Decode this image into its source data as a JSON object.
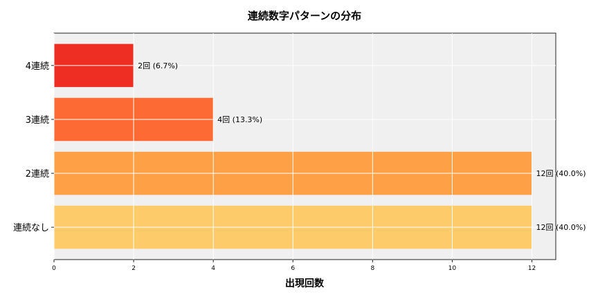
{
  "chart_data": {
    "type": "bar",
    "orientation": "horizontal",
    "title": "連続数字パターンの分布",
    "xlabel": "出現回数",
    "ylabel": "",
    "categories": [
      "4連続",
      "3連続",
      "2連続",
      "連続なし"
    ],
    "values": [
      2,
      4,
      12,
      12
    ],
    "data_labels": [
      "2回 (6.7%)",
      "4回 (13.3%)",
      "12回 (40.0%)",
      "12回 (40.0%)"
    ],
    "colors": [
      "#ee2e22",
      "#fd6a33",
      "#fda046",
      "#fecb6a"
    ],
    "xlim": [
      0,
      12.6
    ],
    "xticks": [
      0,
      2,
      4,
      6,
      8,
      10,
      12
    ],
    "grid": true,
    "background": "#f0f0f0"
  }
}
